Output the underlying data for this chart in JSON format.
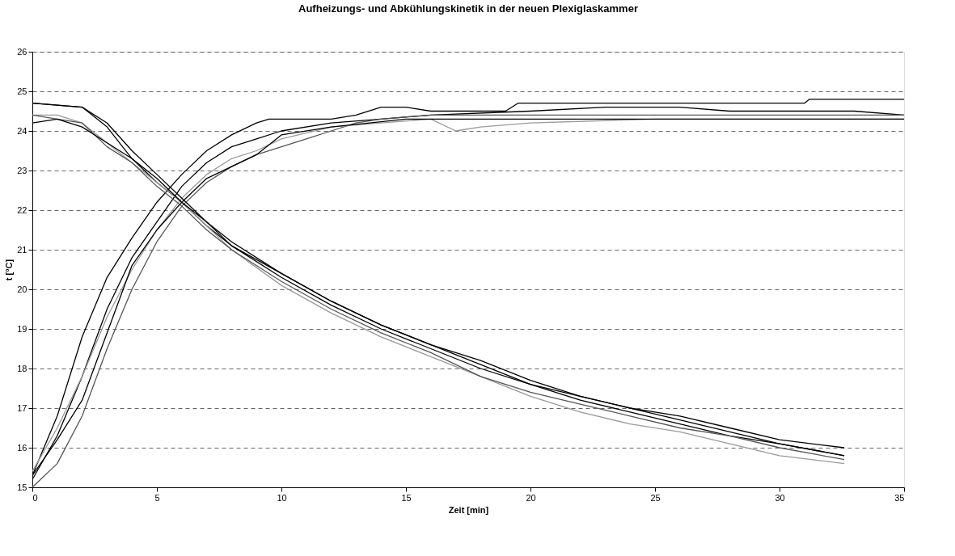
{
  "chart_data": {
    "type": "line",
    "title": "Aufheizungs- und Abkühlungskinetik in der neuen Plexiglaskammer",
    "xlabel": "Zeit [min]",
    "ylabel": "t [°C]",
    "xlim": [
      0,
      35
    ],
    "xticks": [
      0,
      5,
      10,
      15,
      20,
      25,
      30,
      35
    ],
    "ylim": [
      15,
      26
    ],
    "yticks": [
      15,
      16,
      17,
      18,
      19,
      20,
      21,
      22,
      23,
      24,
      25,
      26
    ],
    "grid": "y",
    "marker": "none",
    "line_style": "solid",
    "legend": false,
    "series": [
      {
        "color": "#000000",
        "x": [
          0,
          1,
          2,
          3,
          4,
          5,
          6,
          7,
          8,
          9,
          9.5,
          12,
          13,
          14,
          15,
          16,
          19,
          19.5,
          31,
          31.2,
          35
        ],
        "values": [
          15.3,
          16.8,
          18.8,
          20.3,
          21.3,
          22.2,
          22.9,
          23.5,
          23.9,
          24.2,
          24.3,
          24.3,
          24.4,
          24.6,
          24.6,
          24.5,
          24.5,
          24.7,
          24.7,
          24.8,
          24.8
        ]
      },
      {
        "color": "#000000",
        "x": [
          0,
          1,
          2,
          3,
          4,
          5,
          6,
          7,
          8,
          9,
          10,
          12,
          14,
          16,
          20,
          23,
          26,
          28,
          30,
          33,
          35
        ],
        "values": [
          15.2,
          16.3,
          17.8,
          19.5,
          20.8,
          21.7,
          22.6,
          23.2,
          23.6,
          23.8,
          24.0,
          24.2,
          24.3,
          24.4,
          24.5,
          24.6,
          24.6,
          24.5,
          24.5,
          24.5,
          24.4
        ]
      },
      {
        "color": "#555555",
        "x": [
          0,
          1,
          2,
          3,
          4,
          5,
          6,
          7,
          8,
          9,
          10,
          11,
          12,
          13,
          14,
          16,
          18,
          20,
          25,
          35
        ],
        "values": [
          15.0,
          15.6,
          16.8,
          18.5,
          20.0,
          21.2,
          22.1,
          22.7,
          23.1,
          23.4,
          23.6,
          23.8,
          24.0,
          24.2,
          24.3,
          24.4,
          24.4,
          24.4,
          24.4,
          24.4
        ]
      },
      {
        "color": "#999999",
        "x": [
          0,
          1,
          2,
          3,
          4,
          5,
          6,
          7,
          8,
          9,
          10,
          12,
          14,
          16,
          17,
          18,
          20,
          25,
          35
        ],
        "values": [
          15.4,
          16.5,
          17.8,
          19.3,
          20.5,
          21.5,
          22.3,
          22.9,
          23.3,
          23.5,
          23.8,
          24.1,
          24.2,
          24.3,
          24.0,
          24.1,
          24.2,
          24.3,
          24.3
        ]
      },
      {
        "color": "#000000",
        "x": [
          0,
          1,
          2,
          3,
          4,
          5,
          6,
          7,
          8,
          9,
          10,
          12,
          15,
          35
        ],
        "values": [
          15.3,
          16.2,
          17.2,
          18.9,
          20.6,
          21.5,
          22.2,
          22.8,
          23.1,
          23.4,
          23.9,
          24.1,
          24.3,
          24.3
        ]
      },
      {
        "color": "#000000",
        "x": [
          0,
          2,
          3,
          4,
          5,
          6,
          7,
          8,
          10,
          12,
          14,
          16,
          18,
          20,
          22,
          24,
          26,
          28,
          30,
          32.6
        ],
        "values": [
          24.7,
          24.6,
          24.2,
          23.5,
          22.9,
          22.3,
          21.7,
          21.2,
          20.4,
          19.7,
          19.1,
          18.6,
          18.1,
          17.6,
          17.3,
          17.0,
          16.8,
          16.5,
          16.2,
          16.0
        ]
      },
      {
        "color": "#000000",
        "x": [
          0,
          2,
          3,
          4,
          5,
          6,
          7,
          8,
          10,
          12,
          14,
          16,
          18,
          20,
          22,
          24,
          26,
          28,
          30,
          32.6
        ],
        "values": [
          24.7,
          24.6,
          24.1,
          23.3,
          22.7,
          22.2,
          21.6,
          21.1,
          20.3,
          19.6,
          19.0,
          18.5,
          18.0,
          17.6,
          17.2,
          16.9,
          16.6,
          16.3,
          16.1,
          15.8
        ]
      },
      {
        "color": "#999999",
        "x": [
          0,
          1,
          2,
          3,
          4,
          5,
          6,
          7,
          8,
          10,
          12,
          14,
          16,
          18,
          20,
          22,
          24,
          26,
          28,
          30,
          32.6
        ],
        "values": [
          24.4,
          24.4,
          24.2,
          23.7,
          23.2,
          22.7,
          22.2,
          21.6,
          21.0,
          20.1,
          19.4,
          18.8,
          18.3,
          17.8,
          17.3,
          16.9,
          16.6,
          16.4,
          16.1,
          15.8,
          15.6
        ]
      },
      {
        "color": "#555555",
        "x": [
          0,
          1,
          2,
          3,
          4,
          5,
          6,
          7,
          8,
          10,
          12,
          14,
          16,
          18,
          20,
          22,
          24,
          26,
          28,
          30,
          32.6
        ],
        "values": [
          24.4,
          24.3,
          24.2,
          23.6,
          23.2,
          22.6,
          22.1,
          21.5,
          21.0,
          20.2,
          19.5,
          18.9,
          18.4,
          17.8,
          17.4,
          17.1,
          16.8,
          16.5,
          16.3,
          16.0,
          15.7
        ]
      },
      {
        "color": "#000000",
        "x": [
          0,
          1,
          2,
          3,
          4,
          5,
          6,
          7,
          8,
          10,
          12,
          14,
          16,
          18,
          20,
          22,
          24,
          26,
          28,
          30,
          32.6
        ],
        "values": [
          24.2,
          24.3,
          24.1,
          23.7,
          23.3,
          22.8,
          22.2,
          21.7,
          21.1,
          20.4,
          19.7,
          19.1,
          18.6,
          18.2,
          17.7,
          17.3,
          17.0,
          16.7,
          16.4,
          16.1,
          15.8
        ]
      }
    ]
  }
}
